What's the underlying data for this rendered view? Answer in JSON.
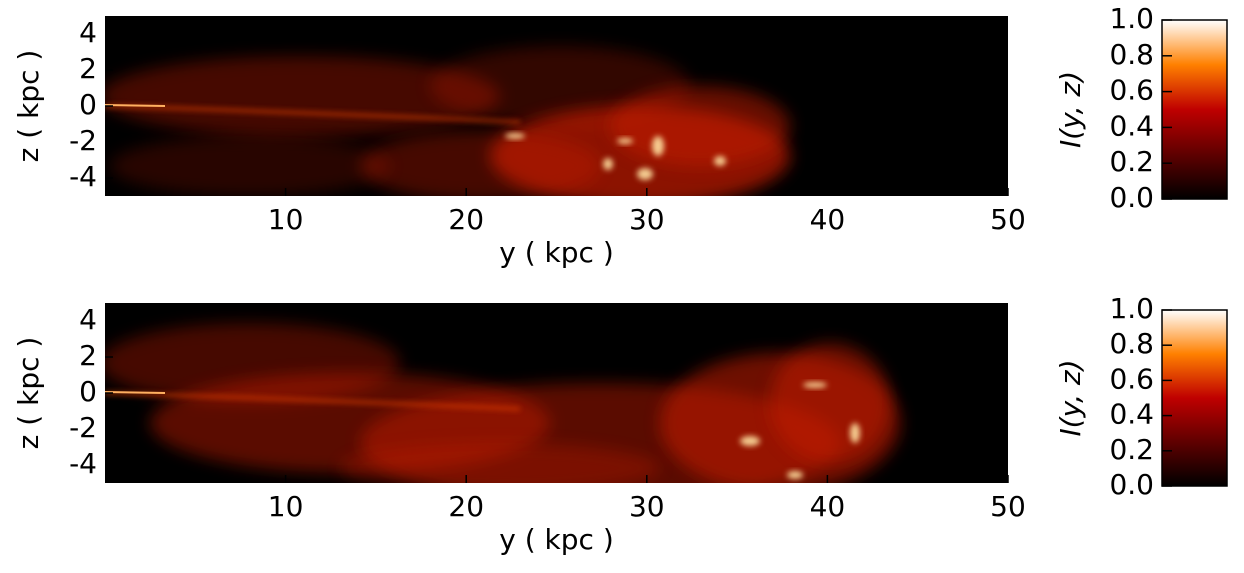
{
  "chart_data": [
    {
      "type": "image",
      "xlabel": "y ( kpc )",
      "ylabel": "z ( kpc )",
      "xlim": [
        0,
        50
      ],
      "xticks": [
        10,
        20,
        30,
        40,
        50
      ],
      "ylim": [
        -5,
        5
      ],
      "yticks": [
        4,
        2,
        0,
        -2,
        -4
      ],
      "colorbar_label": "I(y, z)",
      "colormap": "gist_heat",
      "clim": [
        0,
        1
      ],
      "cticks": [
        {
          "value": 0,
          "label": "0.0"
        },
        0.2,
        0.4,
        0.6,
        0.8,
        {
          "value": 1,
          "label": "1.0"
        }
      ]
    },
    {
      "type": "image",
      "xlabel": "y ( kpc )",
      "ylabel": "z ( kpc )",
      "xlim": [
        0,
        50
      ],
      "xticks": [
        10,
        20,
        30,
        40,
        50
      ],
      "ylim": [
        -5,
        5
      ],
      "yticks": [
        4,
        2,
        0,
        -2,
        -4
      ],
      "colorbar_label": "I(y, z)",
      "colormap": "gist_heat",
      "clim": [
        0,
        1
      ],
      "cticks": [
        {
          "value": 0,
          "label": "0.0"
        },
        0.2,
        0.4,
        0.6,
        0.8,
        {
          "value": 1,
          "label": "1.0"
        }
      ]
    }
  ]
}
